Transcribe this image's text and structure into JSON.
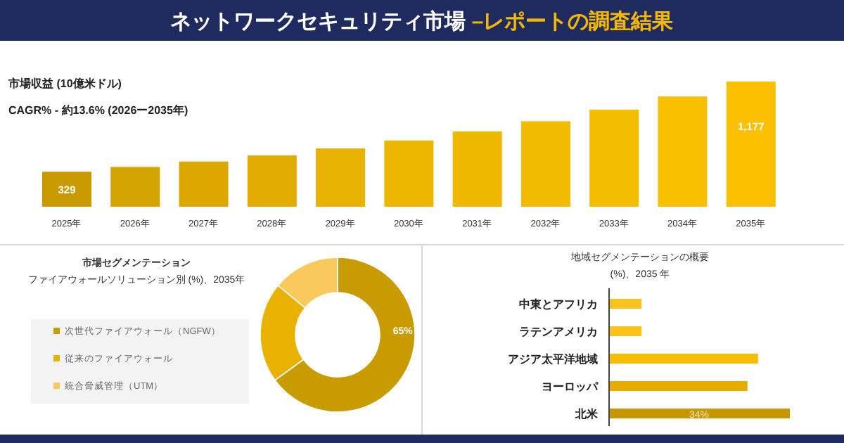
{
  "chart_data": [
    {
      "type": "bar",
      "title": "ネットワークセキュリティ市場 –レポートの調査結果",
      "ylabel": "市場収益 (10億米ドル)",
      "annotations": [
        "CAGR% - 約13.6% (2026ー2035年)"
      ],
      "categories": [
        "2025年",
        "2026年",
        "2027年",
        "2028年",
        "2029年",
        "2030年",
        "2031年",
        "2032年",
        "2033年",
        "2034年",
        "2035年"
      ],
      "values": [
        329,
        374,
        425,
        483,
        548,
        623,
        708,
        804,
        913,
        1037,
        1177
      ],
      "value_labels": [
        "329",
        null,
        null,
        null,
        null,
        null,
        null,
        null,
        null,
        null,
        "1,177"
      ],
      "colors": [
        "#c99a00",
        "#d6a400",
        "#dca800",
        "#e2ad00",
        "#e8b200",
        "#ecb500",
        "#efb800",
        "#f2ba00",
        "#f5bd00",
        "#f8bf00",
        "#fbc100"
      ]
    },
    {
      "type": "donut",
      "title": "市場セグメンテーション",
      "subtitle": "ファイアウォールソリューション別 (%)、2035年",
      "categories": [
        "次世代ファイアウォール（NGFW）",
        "従来のファイアウォール",
        "統合脅威管理（UTM）"
      ],
      "values": [
        65,
        21,
        14
      ],
      "value_labels": [
        "65%",
        null,
        null
      ],
      "colors": [
        "#c89b00",
        "#e9b200",
        "#fac95e"
      ],
      "legend": "left"
    },
    {
      "type": "bar",
      "orientation": "horizontal",
      "title": "地域セグメンテーションの概要",
      "subtitle": "(%)、2035 年",
      "categories": [
        "中東とアフリカ",
        "ラテンアメリカ",
        "アジア太平洋地域",
        "ヨーロッパ",
        "北米"
      ],
      "values": [
        6,
        6,
        28,
        26,
        34
      ],
      "value_labels": [
        null,
        null,
        null,
        null,
        "34%"
      ],
      "colors": [
        "#fbc31a",
        "#fbc31a",
        "#f7bd00",
        "#e6ad00",
        "#c89600"
      ]
    }
  ]
}
